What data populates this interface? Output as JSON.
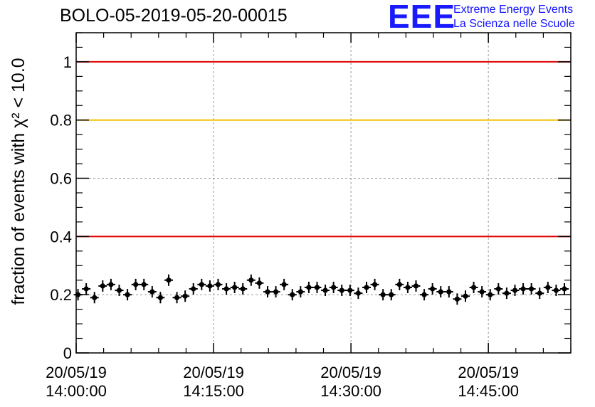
{
  "title": "BOLO-05-2019-05-20-00015",
  "logo": {
    "mark": "EEE",
    "line1": "Extreme Energy Events",
    "line2": "La Scienza nelle Scuole"
  },
  "colors": {
    "line_red": "#e00000",
    "line_yellow": "#f2c200",
    "points": "#000000",
    "grid": "#9a9a9a"
  },
  "chart_data": {
    "type": "scatter",
    "title": "BOLO-05-2019-05-20-00015",
    "ylabel": "fraction of events with χ² < 10.0",
    "xlabel": "",
    "ylim": [
      0,
      1.1
    ],
    "xlim": [
      "14:00:00",
      "14:54:00"
    ],
    "x_ticks": [
      {
        "date": "20/05/19",
        "time": "14:00:00"
      },
      {
        "date": "20/05/19",
        "time": "14:15:00"
      },
      {
        "date": "20/05/19",
        "time": "14:30:00"
      },
      {
        "date": "20/05/19",
        "time": "14:45:00"
      }
    ],
    "y_ticks": [
      "0",
      "0.2",
      "0.4",
      "0.6",
      "0.8",
      "1"
    ],
    "grid": true,
    "reference_lines": [
      {
        "y": 1.0,
        "color": "red"
      },
      {
        "y": 0.8,
        "color": "yellow"
      },
      {
        "y": 0.4,
        "color": "red"
      }
    ],
    "x": [
      "14:00:12",
      "14:01:06",
      "14:02:00",
      "14:02:54",
      "14:03:48",
      "14:04:42",
      "14:05:36",
      "14:06:30",
      "14:07:24",
      "14:08:18",
      "14:09:12",
      "14:10:06",
      "14:11:00",
      "14:11:54",
      "14:12:48",
      "14:13:42",
      "14:14:36",
      "14:15:30",
      "14:16:24",
      "14:17:18",
      "14:18:12",
      "14:19:06",
      "14:20:00",
      "14:20:54",
      "14:21:48",
      "14:22:42",
      "14:23:36",
      "14:24:30",
      "14:25:24",
      "14:26:18",
      "14:27:12",
      "14:28:06",
      "14:29:00",
      "14:29:54",
      "14:30:48",
      "14:31:42",
      "14:32:36",
      "14:33:30",
      "14:34:24",
      "14:35:18",
      "14:36:12",
      "14:37:06",
      "14:38:00",
      "14:38:54",
      "14:39:48",
      "14:40:42",
      "14:41:36",
      "14:42:30",
      "14:43:24",
      "14:44:18",
      "14:45:12",
      "14:46:06",
      "14:47:00",
      "14:47:54",
      "14:48:48",
      "14:49:42",
      "14:50:36",
      "14:51:30",
      "14:52:24",
      "14:53:18"
    ],
    "y": [
      0.2,
      0.22,
      0.19,
      0.23,
      0.235,
      0.215,
      0.2,
      0.235,
      0.235,
      0.21,
      0.19,
      0.25,
      0.19,
      0.195,
      0.22,
      0.235,
      0.23,
      0.235,
      0.22,
      0.225,
      0.22,
      0.25,
      0.24,
      0.21,
      0.21,
      0.235,
      0.2,
      0.21,
      0.225,
      0.225,
      0.215,
      0.225,
      0.215,
      0.215,
      0.205,
      0.225,
      0.235,
      0.2,
      0.2,
      0.235,
      0.225,
      0.23,
      0.2,
      0.22,
      0.21,
      0.21,
      0.185,
      0.195,
      0.225,
      0.21,
      0.2,
      0.22,
      0.205,
      0.215,
      0.22,
      0.22,
      0.205,
      0.225,
      0.215,
      0.22
    ]
  }
}
